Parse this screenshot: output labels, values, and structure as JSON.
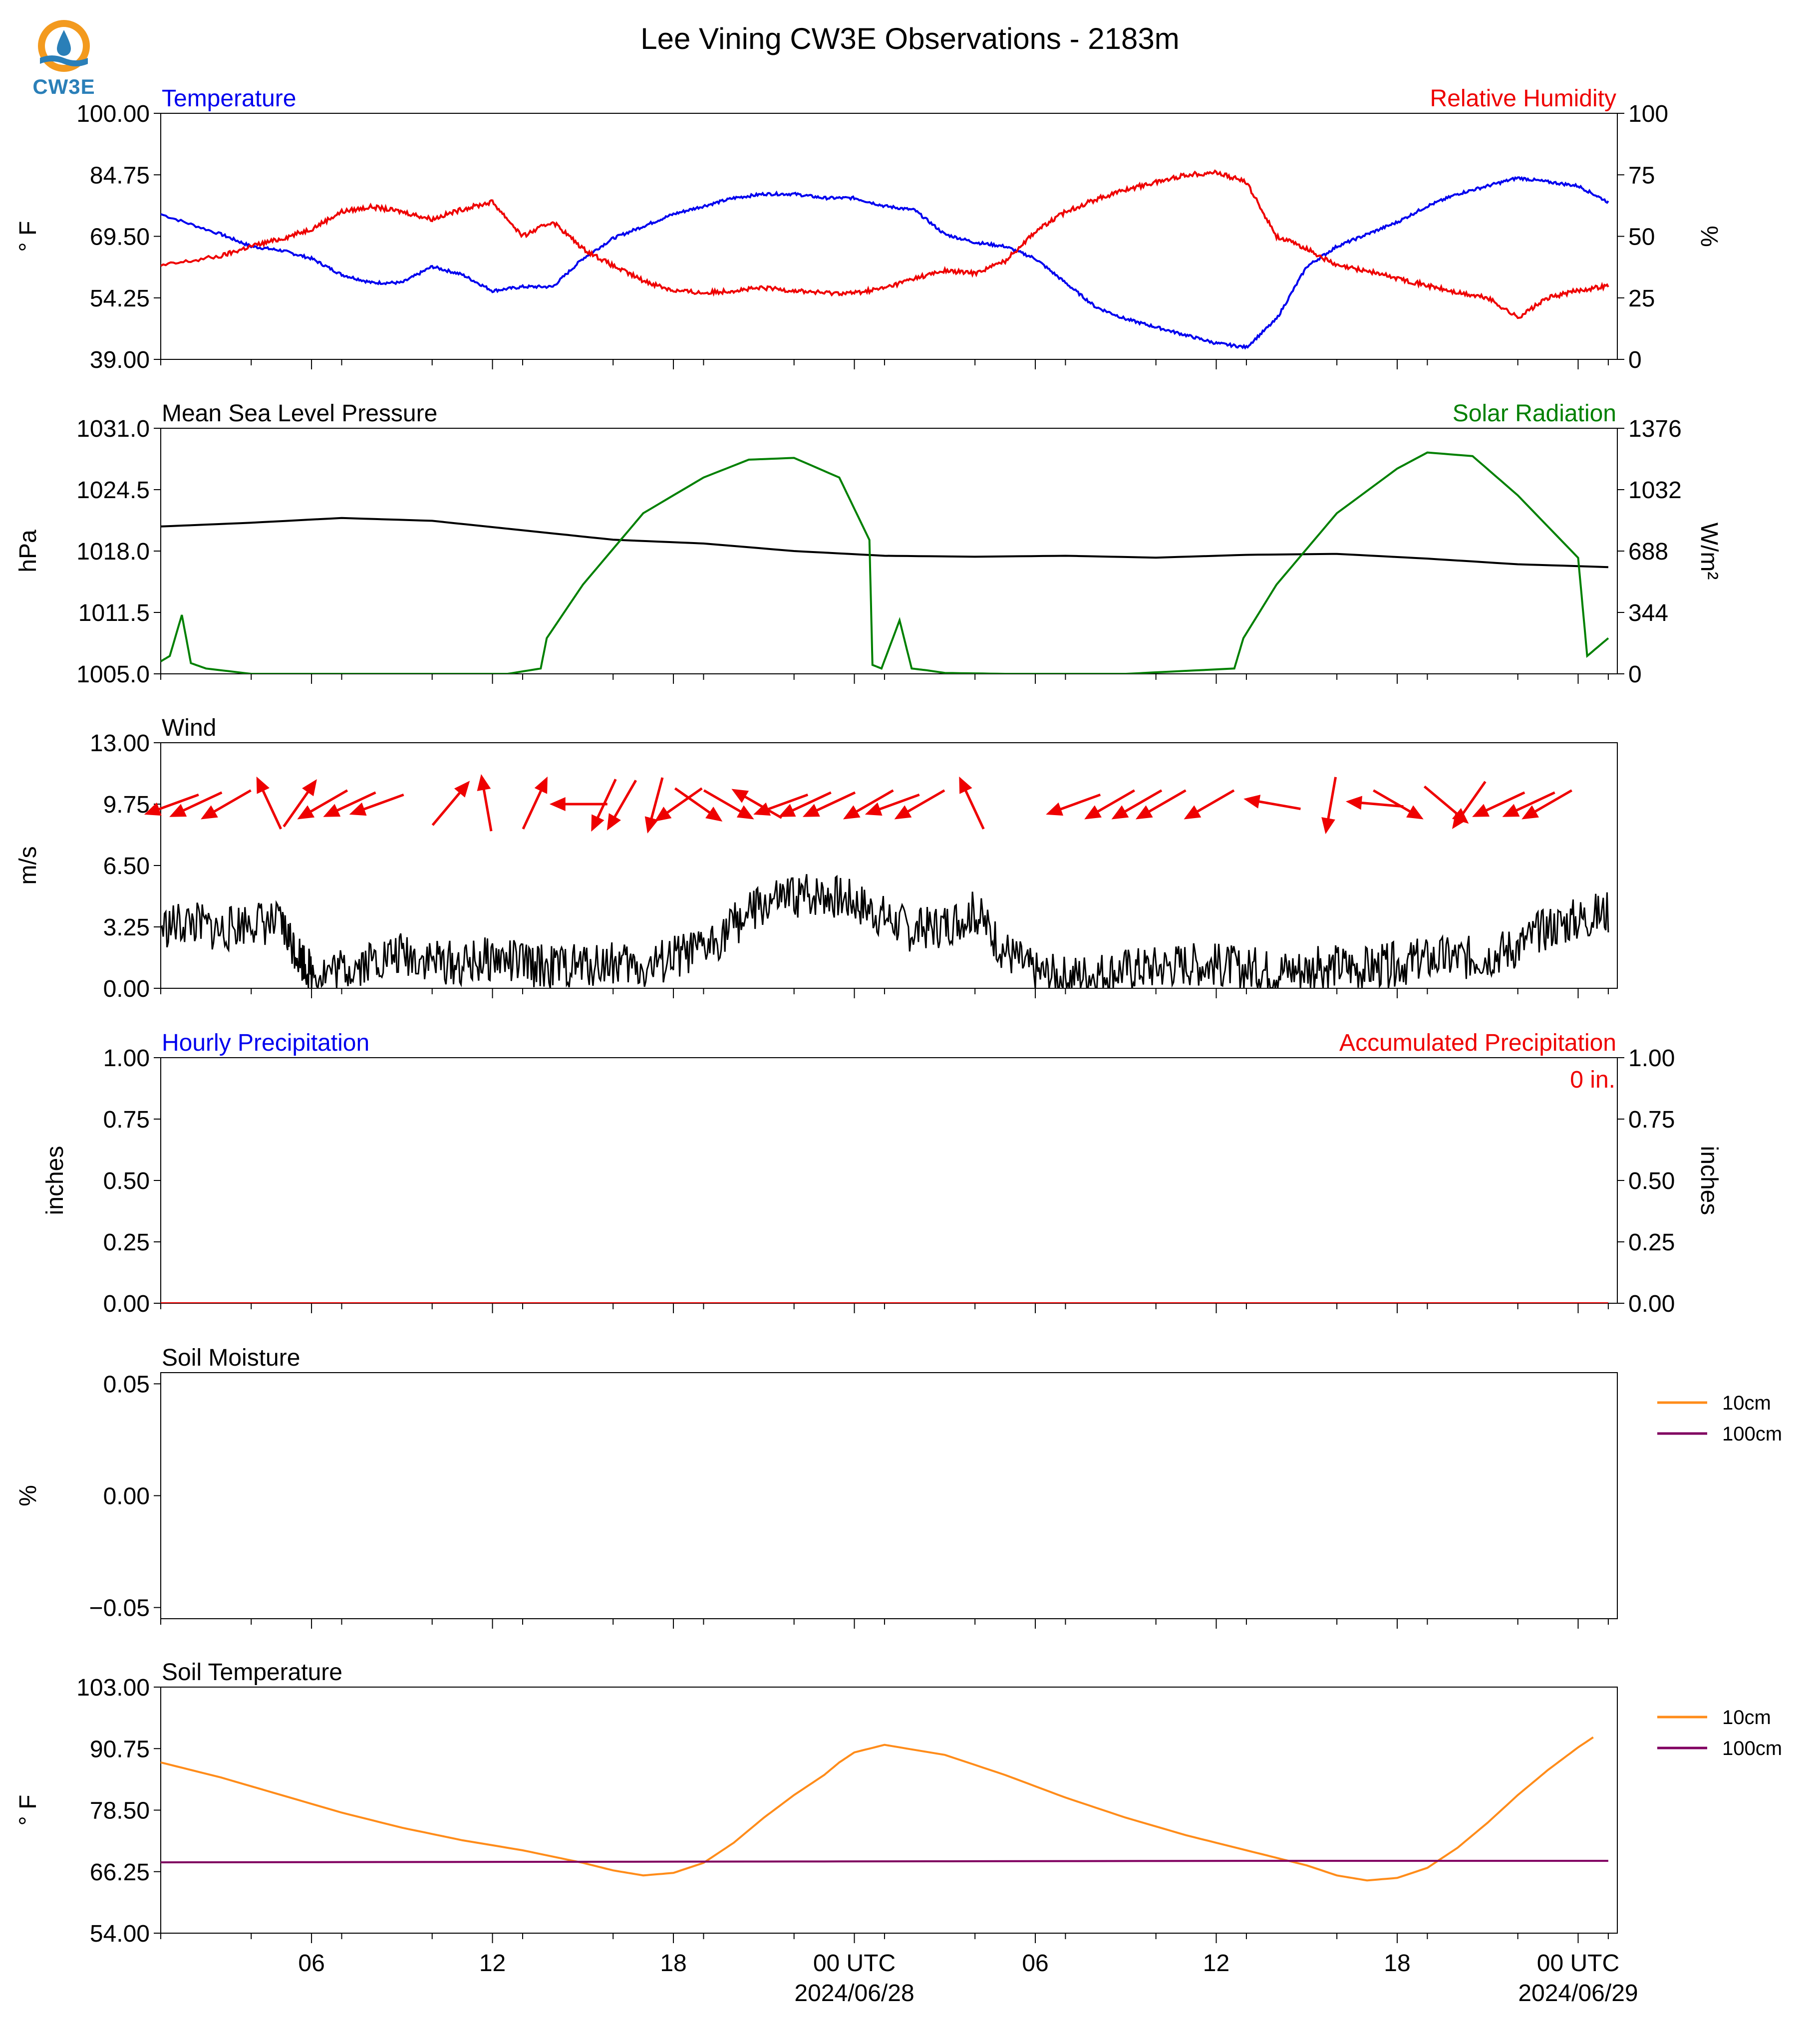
{
  "title": "Lee Vining CW3E Observations - 2183m",
  "logo": {
    "text": "CW3E",
    "colors": {
      "sun": "#f39a1e",
      "drop": "#2a7fb8"
    }
  },
  "colors": {
    "blue": "#0000ee",
    "red": "#ee0000",
    "green": "#008000",
    "black": "#000000",
    "orange": "#ff8c1a",
    "purple": "#800060"
  },
  "x_ticks": [
    "06",
    "12",
    "18",
    "00 UTC",
    "06",
    "12",
    "18",
    "00 UTC"
  ],
  "x_dates": [
    "2024/06/28",
    "2024/06/29"
  ],
  "chart_data": [
    {
      "type": "line",
      "title_left": "Temperature",
      "title_right": "Relative Humidity",
      "ylabel_left": "° F",
      "ylabel_right": "%",
      "ylim_left": [
        39.0,
        100.0
      ],
      "ylim_right": [
        0,
        100
      ],
      "yticks_left": [
        "39.00",
        "54.25",
        "69.50",
        "84.75",
        "100.00"
      ],
      "yticks_right": [
        "0",
        "25",
        "50",
        "75",
        "100"
      ],
      "x_hours": [
        0,
        2,
        3,
        4,
        5,
        6,
        7,
        8,
        9,
        10,
        11,
        12,
        13,
        14,
        15,
        16,
        17,
        18,
        19,
        20,
        21,
        22,
        23,
        24,
        25,
        26,
        27,
        28,
        29,
        30,
        31,
        32,
        33,
        34,
        35,
        36,
        37,
        38,
        39,
        40,
        41,
        42,
        43,
        44,
        45,
        46,
        47,
        48
      ],
      "series": [
        {
          "name": "Temperature",
          "axis": "left",
          "color": "#0000ee",
          "values": [
            75,
            70,
            67,
            66,
            64,
            60,
            58,
            58,
            62,
            60,
            56,
            57,
            57,
            64,
            69,
            72,
            75,
            77,
            79,
            80,
            80,
            79,
            79,
            77,
            76,
            70,
            68,
            67,
            64,
            58,
            52,
            49,
            47,
            45,
            43,
            42,
            49,
            62,
            67,
            70,
            73,
            77,
            80,
            82,
            84,
            83,
            82,
            78
          ]
        },
        {
          "name": "Relative Humidity",
          "axis": "right",
          "color": "#ee0000",
          "values": [
            38,
            42,
            46,
            49,
            53,
            60,
            62,
            60,
            57,
            61,
            64,
            50,
            56,
            45,
            38,
            32,
            28,
            27,
            28,
            29,
            28,
            27,
            27,
            29,
            33,
            36,
            35,
            40,
            52,
            60,
            65,
            69,
            72,
            75,
            76,
            72,
            50,
            45,
            38,
            36,
            33,
            30,
            27,
            25,
            17,
            25,
            28,
            30
          ]
        }
      ]
    },
    {
      "type": "line",
      "title_left": "Mean Sea Level Pressure",
      "title_right": "Solar Radiation",
      "ylabel_left": "hPa",
      "ylabel_right": "W/m²",
      "ylim_left": [
        1005.0,
        1031.0
      ],
      "ylim_right": [
        0,
        1376
      ],
      "yticks_left": [
        "1005.0",
        "1011.5",
        "1018.0",
        "1024.5",
        "1031.0"
      ],
      "yticks_right": [
        "0",
        "344",
        "688",
        "1032",
        "1376"
      ],
      "series": [
        {
          "name": "Mean Sea Level Pressure",
          "axis": "left",
          "color": "#000000",
          "x_hours": [
            0,
            3,
            6,
            9,
            12,
            15,
            18,
            21,
            24,
            27,
            30,
            33,
            36,
            39,
            42,
            45,
            48
          ],
          "values": [
            1020.6,
            1021.0,
            1021.5,
            1021.2,
            1020.2,
            1019.2,
            1018.8,
            1018.0,
            1017.5,
            1017.4,
            1017.5,
            1017.3,
            1017.6,
            1017.7,
            1017.2,
            1016.6,
            1016.3
          ]
        },
        {
          "name": "Solar Radiation",
          "axis": "right",
          "color": "#008000",
          "x_hours": [
            0,
            0.3,
            0.7,
            1.0,
            1.5,
            3,
            6,
            10,
            11.5,
            12.6,
            12.8,
            14,
            16,
            18,
            19.5,
            21,
            22.5,
            23.5,
            23.6,
            23.9,
            24.5,
            24.9,
            25.4,
            26,
            28,
            32,
            35.6,
            35.9,
            37,
            39,
            41,
            42,
            43.5,
            45,
            47.0,
            47.3,
            48
          ],
          "values": [
            70,
            100,
            330,
            60,
            30,
            0,
            0,
            0,
            0,
            30,
            200,
            500,
            900,
            1100,
            1200,
            1210,
            1100,
            750,
            50,
            30,
            300,
            30,
            20,
            5,
            0,
            0,
            30,
            200,
            500,
            900,
            1150,
            1240,
            1220,
            1000,
            650,
            100,
            200
          ]
        }
      ]
    },
    {
      "type": "line",
      "title_left": "Wind",
      "ylabel_left": "m/s",
      "ylim_left": [
        0.0,
        13.0
      ],
      "yticks_left": [
        "0.00",
        "3.25",
        "6.50",
        "9.75",
        "13.00"
      ],
      "series": [
        {
          "name": "Wind Speed",
          "axis": "left",
          "color": "#000000",
          "x_hours": [
            0,
            1,
            2,
            3,
            4,
            4.5,
            5,
            6,
            7,
            8,
            9,
            10,
            11,
            12,
            13,
            14,
            15,
            16,
            17,
            18,
            19,
            20,
            21,
            22,
            23,
            24,
            25,
            26,
            27,
            28,
            29,
            30,
            31,
            32,
            33,
            34,
            35,
            36,
            37,
            38,
            39,
            40,
            41,
            42,
            43,
            44,
            45,
            46,
            47,
            48
          ],
          "values": [
            3.2,
            3.5,
            3.0,
            3.6,
            3.3,
            2.0,
            0.8,
            1.0,
            1.5,
            1.8,
            1.5,
            1.2,
            1.6,
            1.3,
            1.1,
            1.2,
            1.4,
            1.0,
            1.6,
            2.0,
            3.4,
            4.4,
            4.8,
            5.0,
            4.6,
            3.8,
            3.0,
            3.4,
            4.0,
            2.0,
            0.8,
            0.6,
            0.8,
            1.0,
            1.1,
            1.3,
            1.2,
            1.0,
            0.9,
            1.0,
            1.2,
            1.0,
            1.3,
            1.5,
            1.6,
            1.7,
            2.2,
            3.2,
            3.6,
            4.0
          ]
        },
        {
          "name": "Wind Vectors",
          "type": "arrows",
          "color": "#ee0000",
          "x_hours": [
            0.4,
            1.2,
            2.2,
            3.6,
            4.6,
            5.4,
            6.3,
            7.2,
            9.6,
            10.8,
            12.4,
            13.9,
            14.7,
            15.3,
            16.4,
            17.2,
            17.8,
            18.8,
            19.8,
            20.6,
            21.4,
            22.2,
            23.5,
            24.3,
            25.2,
            26.9,
            30.3,
            31.5,
            32.4,
            33.2,
            34.8,
            36.9,
            38.8,
            40.3,
            41.0,
            42.6,
            43.4,
            44.4,
            45.4,
            46.0
          ],
          "angle_deg": [
            200,
            205,
            210,
            115,
            55,
            210,
            205,
            200,
            50,
            100,
            65,
            180,
            245,
            240,
            255,
            215,
            325,
            330,
            150,
            200,
            205,
            205,
            210,
            200,
            210,
            115,
            200,
            210,
            210,
            210,
            210,
            170,
            260,
            175,
            330,
            320,
            235,
            205,
            205,
            210
          ],
          "length_ms": [
            7.8,
            8.0,
            8.2,
            8.0,
            8.0,
            8.2,
            8.0,
            8.0,
            7.5,
            8.0,
            8.0,
            8.0,
            8.0,
            8.0,
            8.0,
            8.2,
            8.0,
            8.0,
            8.0,
            8.0,
            8.2,
            8.2,
            8.0,
            8.0,
            8.2,
            8.0,
            8.0,
            8.2,
            8.0,
            8.0,
            8.0,
            8.0,
            8.0,
            8.0,
            8.0,
            8.2,
            8.0,
            8.0,
            8.0,
            8.0
          ]
        }
      ]
    },
    {
      "type": "line",
      "title_left": "Hourly Precipitation",
      "title_right": "Accumulated Precipitation",
      "ylabel_left": "inches",
      "ylabel_right": "inches",
      "ylim_left": [
        0.0,
        1.0
      ],
      "ylim_right": [
        0.0,
        1.0
      ],
      "yticks_left": [
        "0.00",
        "0.25",
        "0.50",
        "0.75",
        "1.00"
      ],
      "yticks_right": [
        "0.00",
        "0.25",
        "0.50",
        "0.75",
        "1.00"
      ],
      "annotation": "0 in.",
      "series": [
        {
          "name": "Hourly Precipitation",
          "axis": "left",
          "color": "#0000ee",
          "x_hours": [
            0,
            48
          ],
          "values": [
            0,
            0
          ]
        },
        {
          "name": "Accumulated Precipitation",
          "axis": "right",
          "color": "#ee0000",
          "x_hours": [
            0,
            48
          ],
          "values": [
            0,
            0
          ]
        }
      ]
    },
    {
      "type": "line",
      "title_left": "Soil Moisture",
      "ylabel_left": "%",
      "ylim_left": [
        -0.055,
        0.055
      ],
      "yticks_left": [
        "−0.05",
        "0.00",
        "0.05"
      ],
      "ytick_values": [
        -0.05,
        0.0,
        0.05
      ],
      "legend": [
        "10cm",
        "100cm"
      ],
      "legend_position": "outside-right",
      "series": []
    },
    {
      "type": "line",
      "title_left": "Soil Temperature",
      "ylabel_left": "° F",
      "ylim_left": [
        54.0,
        103.0
      ],
      "yticks_left": [
        "54.00",
        "66.25",
        "78.50",
        "90.75",
        "103.00"
      ],
      "legend": [
        "10cm",
        "100cm"
      ],
      "legend_position": "outside-right",
      "series": [
        {
          "name": "10cm",
          "axis": "left",
          "color": "#ff8c1a",
          "x_hours": [
            0,
            2,
            4,
            6,
            8,
            10,
            12,
            14,
            15,
            16,
            17,
            18,
            19,
            20,
            21,
            22,
            22.5,
            23,
            24,
            26,
            28,
            30,
            32,
            34,
            36,
            38,
            39,
            40,
            41,
            42,
            43,
            44,
            45,
            46,
            47,
            47.5
          ],
          "values": [
            88,
            85,
            81.5,
            78,
            75,
            72.5,
            70.5,
            68,
            66.5,
            65.5,
            66,
            68,
            72,
            77,
            81.5,
            85.5,
            88,
            90,
            91.5,
            89.5,
            85.5,
            81,
            77,
            73.5,
            70.5,
            67.5,
            65.5,
            64.5,
            65,
            67,
            71,
            76,
            81.5,
            86.5,
            91,
            93
          ]
        },
        {
          "name": "100cm",
          "axis": "left",
          "color": "#800060",
          "x_hours": [
            0,
            12,
            24,
            36,
            48
          ],
          "values": [
            68.1,
            68.2,
            68.3,
            68.4,
            68.4
          ]
        }
      ]
    }
  ]
}
